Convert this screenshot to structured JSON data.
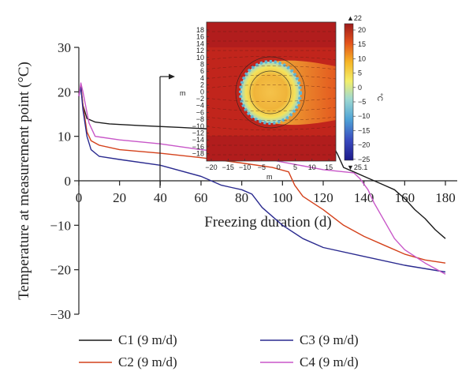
{
  "chart_data": {
    "type": "line",
    "xlabel": "Freezing duration (d)",
    "ylabel": "Temperature at measurement point (°C)",
    "xlim": [
      0,
      180
    ],
    "ylim": [
      -30,
      30
    ],
    "x_ticks": [
      "0",
      "20",
      "40",
      "60",
      "80",
      "100",
      "120",
      "140",
      "160",
      "180"
    ],
    "y_ticks": [
      "30",
      "20",
      "10",
      "0",
      "−10",
      "−20",
      "−30"
    ],
    "grid": false,
    "legend_position": "bottom",
    "series": [
      {
        "name": "C1 (9 m/d)",
        "color": "#1a1a1a",
        "points": [
          [
            0,
            19
          ],
          [
            1,
            21
          ],
          [
            2,
            17
          ],
          [
            4,
            14
          ],
          [
            8,
            13.2
          ],
          [
            15,
            12.8
          ],
          [
            30,
            12.4
          ],
          [
            50,
            12
          ],
          [
            70,
            11.5
          ],
          [
            90,
            10.8
          ],
          [
            110,
            10
          ],
          [
            120,
            9.6
          ],
          [
            124,
            8.5
          ],
          [
            127,
            6
          ],
          [
            130,
            3
          ],
          [
            135,
            2
          ],
          [
            140,
            1
          ],
          [
            145,
            0
          ],
          [
            150,
            -1
          ],
          [
            155,
            -2
          ],
          [
            160,
            -4
          ],
          [
            165,
            -6.5
          ],
          [
            170,
            -8.5
          ],
          [
            175,
            -11
          ],
          [
            180,
            -13
          ]
        ]
      },
      {
        "name": "C2 (9 m/d)",
        "color": "#d4411b",
        "points": [
          [
            0,
            19
          ],
          [
            1,
            21.5
          ],
          [
            2,
            17
          ],
          [
            4,
            11
          ],
          [
            6,
            9
          ],
          [
            10,
            8
          ],
          [
            20,
            7
          ],
          [
            40,
            6.2
          ],
          [
            60,
            5.2
          ],
          [
            80,
            4
          ],
          [
            95,
            3
          ],
          [
            103,
            2
          ],
          [
            106,
            -1
          ],
          [
            110,
            -3.5
          ],
          [
            115,
            -5
          ],
          [
            120,
            -6.5
          ],
          [
            130,
            -10
          ],
          [
            140,
            -12.5
          ],
          [
            150,
            -14.5
          ],
          [
            160,
            -16.5
          ],
          [
            170,
            -17.8
          ],
          [
            180,
            -18.5
          ]
        ]
      },
      {
        "name": "C3 (9 m/d)",
        "color": "#2a2a8f",
        "points": [
          [
            0,
            19
          ],
          [
            1,
            21
          ],
          [
            2,
            16
          ],
          [
            4,
            10
          ],
          [
            6,
            7
          ],
          [
            10,
            5.5
          ],
          [
            20,
            4.8
          ],
          [
            40,
            3.5
          ],
          [
            60,
            1
          ],
          [
            70,
            -1
          ],
          [
            75,
            -1.5
          ],
          [
            80,
            -2
          ],
          [
            85,
            -3
          ],
          [
            90,
            -6
          ],
          [
            100,
            -10
          ],
          [
            110,
            -13
          ],
          [
            120,
            -15
          ],
          [
            140,
            -17
          ],
          [
            160,
            -19
          ],
          [
            180,
            -20.5
          ]
        ]
      },
      {
        "name": "C4 (9 m/d)",
        "color": "#c857c8",
        "points": [
          [
            0,
            19
          ],
          [
            1,
            22
          ],
          [
            2,
            20
          ],
          [
            5,
            13
          ],
          [
            8,
            10
          ],
          [
            20,
            9.2
          ],
          [
            40,
            8.3
          ],
          [
            60,
            7
          ],
          [
            80,
            6
          ],
          [
            100,
            4.2
          ],
          [
            120,
            2.5
          ],
          [
            135,
            1.8
          ],
          [
            138,
            0.5
          ],
          [
            142,
            -2
          ],
          [
            145,
            -5
          ],
          [
            150,
            -9
          ],
          [
            155,
            -13
          ],
          [
            160,
            -15.5
          ],
          [
            170,
            -18.5
          ],
          [
            180,
            -21
          ]
        ]
      }
    ]
  },
  "inset": {
    "y_axis_label": "m",
    "x_axis_label": "m",
    "y_ticks": [
      "18",
      "16",
      "14",
      "12",
      "10",
      "8",
      "6",
      "4",
      "2",
      "0",
      "−2",
      "−4",
      "−6",
      "−8",
      "−10",
      "−12",
      "−14",
      "−16",
      "−18"
    ],
    "x_ticks": [
      "−20",
      "−15",
      "−10",
      "−5",
      "0",
      "5",
      "10",
      "15"
    ],
    "colorbar_ticks": [
      "20",
      "15",
      "10",
      "5",
      "0",
      "−5",
      "−10",
      "−15",
      "−20",
      "−25"
    ],
    "colorbar_top": "▲22",
    "colorbar_bottom": "▼25.1",
    "colorbar_unit": "°C"
  }
}
